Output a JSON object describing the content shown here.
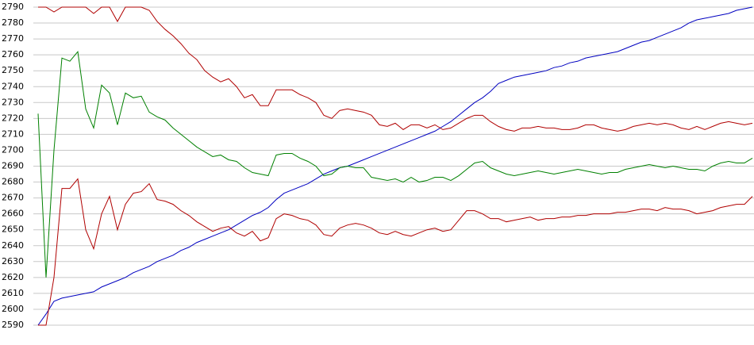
{
  "chart_data": {
    "type": "line",
    "ylim": [
      2590,
      2790
    ],
    "yticks": [
      2590,
      2600,
      2610,
      2620,
      2630,
      2640,
      2650,
      2660,
      2670,
      2680,
      2690,
      2700,
      2710,
      2720,
      2730,
      2740,
      2750,
      2760,
      2770,
      2780,
      2790
    ],
    "grid": true,
    "series": [
      {
        "color": "#0000c0",
        "values": [
          2590,
          2597,
          2605,
          2607,
          2608,
          2609,
          2610,
          2611,
          2614,
          2616,
          2618,
          2620,
          2623,
          2625,
          2627,
          2630,
          2632,
          2634,
          2637,
          2639,
          2642,
          2644,
          2646,
          2648,
          2650,
          2653,
          2656,
          2659,
          2661,
          2664,
          2669,
          2673,
          2675,
          2677,
          2679,
          2682,
          2685,
          2687,
          2689,
          2690,
          2692,
          2694,
          2696,
          2698,
          2700,
          2702,
          2704,
          2706,
          2708,
          2710,
          2712,
          2715,
          2718,
          2722,
          2726,
          2730,
          2733,
          2737,
          2742,
          2744,
          2746,
          2747,
          2748,
          2749,
          2750,
          2752,
          2753,
          2755,
          2756,
          2758,
          2759,
          2760,
          2761,
          2762,
          2764,
          2766,
          2768,
          2769,
          2771,
          2773,
          2775,
          2777,
          2780,
          2782,
          2783,
          2784,
          2785,
          2786,
          2788,
          2789,
          2790
        ]
      },
      {
        "color": "#b00000",
        "values": [
          2790,
          2790,
          2787,
          2790,
          2790,
          2790,
          2790,
          2786,
          2790,
          2790,
          2781,
          2790,
          2790,
          2790,
          2788,
          2781,
          2776,
          2772,
          2767,
          2761,
          2757,
          2750,
          2746,
          2743,
          2745,
          2740,
          2733,
          2735,
          2728,
          2728,
          2738,
          2738,
          2738,
          2735,
          2733,
          2730,
          2722,
          2720,
          2725,
          2726,
          2725,
          2724,
          2722,
          2716,
          2715,
          2717,
          2713,
          2716,
          2716,
          2714,
          2716,
          2713,
          2714,
          2717,
          2720,
          2722,
          2722,
          2718,
          2715,
          2713,
          2712,
          2714,
          2714,
          2715,
          2714,
          2714,
          2713,
          2713,
          2714,
          2716,
          2716,
          2714,
          2713,
          2712,
          2713,
          2715,
          2716,
          2717,
          2716,
          2717,
          2716,
          2714,
          2713,
          2715,
          2713,
          2715,
          2717,
          2718,
          2717,
          2716,
          2717
        ]
      },
      {
        "color": "#008000",
        "values": [
          2723,
          2620,
          2700,
          2758,
          2756,
          2762,
          2726,
          2714,
          2741,
          2736,
          2716,
          2736,
          2733,
          2734,
          2724,
          2721,
          2719,
          2714,
          2710,
          2706,
          2702,
          2699,
          2696,
          2697,
          2694,
          2693,
          2689,
          2686,
          2685,
          2684,
          2697,
          2698,
          2698,
          2695,
          2693,
          2690,
          2684,
          2685,
          2689,
          2690,
          2689,
          2689,
          2683,
          2682,
          2681,
          2682,
          2680,
          2683,
          2680,
          2681,
          2683,
          2683,
          2681,
          2684,
          2688,
          2692,
          2693,
          2689,
          2687,
          2685,
          2684,
          2685,
          2686,
          2687,
          2686,
          2685,
          2686,
          2687,
          2688,
          2687,
          2686,
          2685,
          2686,
          2686,
          2688,
          2689,
          2690,
          2691,
          2690,
          2689,
          2690,
          2689,
          2688,
          2688,
          2687,
          2690,
          2692,
          2693,
          2692,
          2692,
          2695
        ]
      },
      {
        "color": "#b00000",
        "values": [
          2590,
          2590,
          2620,
          2676,
          2676,
          2682,
          2650,
          2638,
          2660,
          2671,
          2650,
          2666,
          2673,
          2674,
          2679,
          2669,
          2668,
          2666,
          2662,
          2659,
          2655,
          2652,
          2649,
          2651,
          2652,
          2648,
          2646,
          2649,
          2643,
          2645,
          2657,
          2660,
          2659,
          2657,
          2656,
          2653,
          2647,
          2646,
          2651,
          2653,
          2654,
          2653,
          2651,
          2648,
          2647,
          2649,
          2647,
          2646,
          2648,
          2650,
          2651,
          2649,
          2650,
          2656,
          2662,
          2662,
          2660,
          2657,
          2657,
          2655,
          2656,
          2657,
          2658,
          2656,
          2657,
          2657,
          2658,
          2658,
          2659,
          2659,
          2660,
          2660,
          2660,
          2661,
          2661,
          2662,
          2663,
          2663,
          2662,
          2664,
          2663,
          2663,
          2662,
          2660,
          2661,
          2662,
          2664,
          2665,
          2666,
          2666,
          2671
        ]
      }
    ]
  }
}
